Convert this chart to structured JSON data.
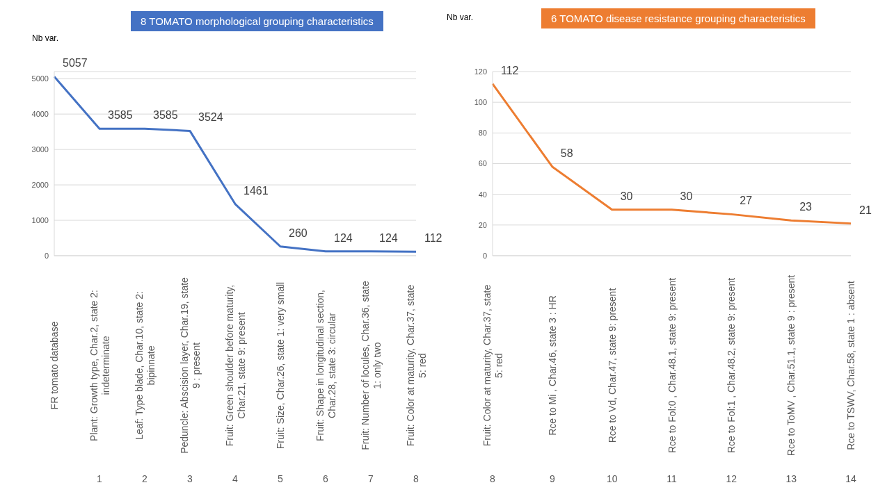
{
  "chart_data": [
    {
      "type": "line",
      "title": "8 TOMATO morphological grouping characteristics",
      "ylabel": "Nb var.",
      "categories": [
        "FR tomato database",
        "Plant: Growth type, Char.2, state 2: indeterminate",
        "Leaf: Type blade, Char.10, state 2: bipinnate",
        "Peduncle: Abscision layer, Char.19, state 9 : present",
        "Fruit: Green shoulder before maturity, Char.21, state 9: present",
        "Fruit: Size, Char.26, state 1: very small",
        "Fruit: Shape in longitudinal section, Char.28, state 3: circular",
        "Fruit: Number of locules, Char.36, state 1: only two",
        "Fruit: Color at maturity, Char.37, state 5: red"
      ],
      "series": [
        {
          "color": "#4472c4",
          "values": [
            5057,
            3585,
            3585,
            3524,
            1461,
            260,
            124,
            124,
            112
          ]
        }
      ],
      "ylim": [
        0,
        5200
      ],
      "yticks": [
        0,
        1000,
        2000,
        3000,
        4000,
        5000
      ],
      "grid": "y",
      "data_labels": true,
      "legend": false,
      "marker": "none",
      "annotations": [
        "1",
        "2",
        "3",
        "4",
        "5",
        "6",
        "7",
        "8"
      ]
    },
    {
      "type": "line",
      "title": "6 TOMATO disease resistance grouping characteristics",
      "ylabel": "Nb var.",
      "categories": [
        "Fruit: Color at maturity, Char.37, state 5: red",
        "Rce to Mi , Char.46, state 3 : HR",
        "Rce to Vd, Char.47, state 9: present",
        "Rce to Fol:0 , Char.48.1, state 9: present",
        "Rce to Fol:1 , Char.48.2, state 9: present",
        "Rce to ToMV , Char.51.1, state 9 : present",
        "Rce to TSWV, Char.58, state 1 : absent"
      ],
      "series": [
        {
          "color": "#ed7d31",
          "values": [
            112,
            58,
            30,
            30,
            27,
            23,
            21
          ]
        }
      ],
      "ylim": [
        0,
        120
      ],
      "yticks": [
        0,
        20,
        40,
        60,
        80,
        100,
        120
      ],
      "grid": "y",
      "data_labels": true,
      "legend": false,
      "marker": "none",
      "annotations": [
        "8",
        "9",
        "10",
        "11",
        "12",
        "13",
        "14"
      ]
    }
  ]
}
